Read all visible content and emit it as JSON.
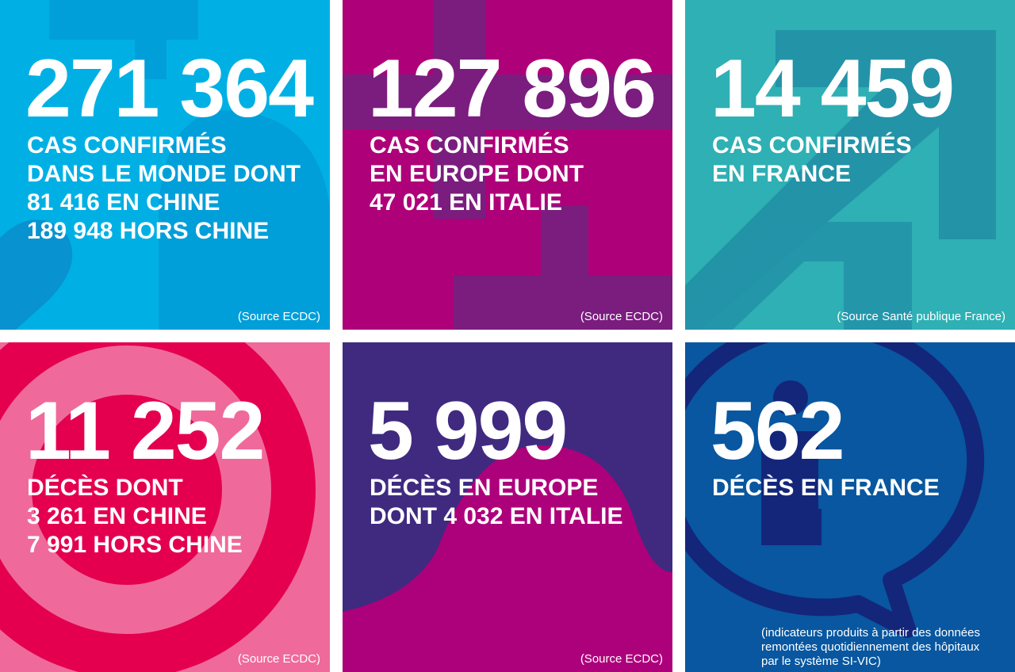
{
  "tiles": [
    {
      "number": "271 364",
      "lines": [
        "CAS CONFIRMÉS",
        "DANS LE MONDE DONT",
        "81 416 EN CHINE",
        "189 948 HORS CHINE"
      ],
      "source": "(Source ECDC)",
      "color": "#00b0e4",
      "accent": "#019fd9"
    },
    {
      "number": "127 896",
      "lines": [
        "CAS CONFIRMÉS",
        "EN EUROPE DONT",
        "47 021 EN ITALIE"
      ],
      "source": "(Source ECDC)",
      "color": "#ae0079",
      "accent": "#7a1d7e"
    },
    {
      "number": "14 459",
      "lines": [
        "CAS CONFIRMÉS",
        "EN FRANCE"
      ],
      "source": "(Source Santé publique France)",
      "color": "#2eb0b4",
      "accent": "#2393a8"
    },
    {
      "number": "11 252",
      "lines": [
        "DÉCÈS DONT",
        "3 261 EN CHINE",
        "7 991 HORS CHINE"
      ],
      "source": "(Source ECDC)",
      "color": "#ef6a9a",
      "accent": "#e4004f"
    },
    {
      "number": "5 999",
      "lines": [
        "DÉCÈS EN EUROPE",
        "DONT 4 032 EN ITALIE"
      ],
      "source": "(Source ECDC)",
      "color": "#3f2a80",
      "accent": "#ad007b"
    },
    {
      "number": "562",
      "lines": [
        "DÉCÈS EN FRANCE"
      ],
      "note": [
        "(indicateurs produits à partir des données",
        "remontées quotidiennement des hôpitaux",
        "par le système SI-VIC)"
      ],
      "color": "#0857a0",
      "accent": "#14267a"
    }
  ]
}
